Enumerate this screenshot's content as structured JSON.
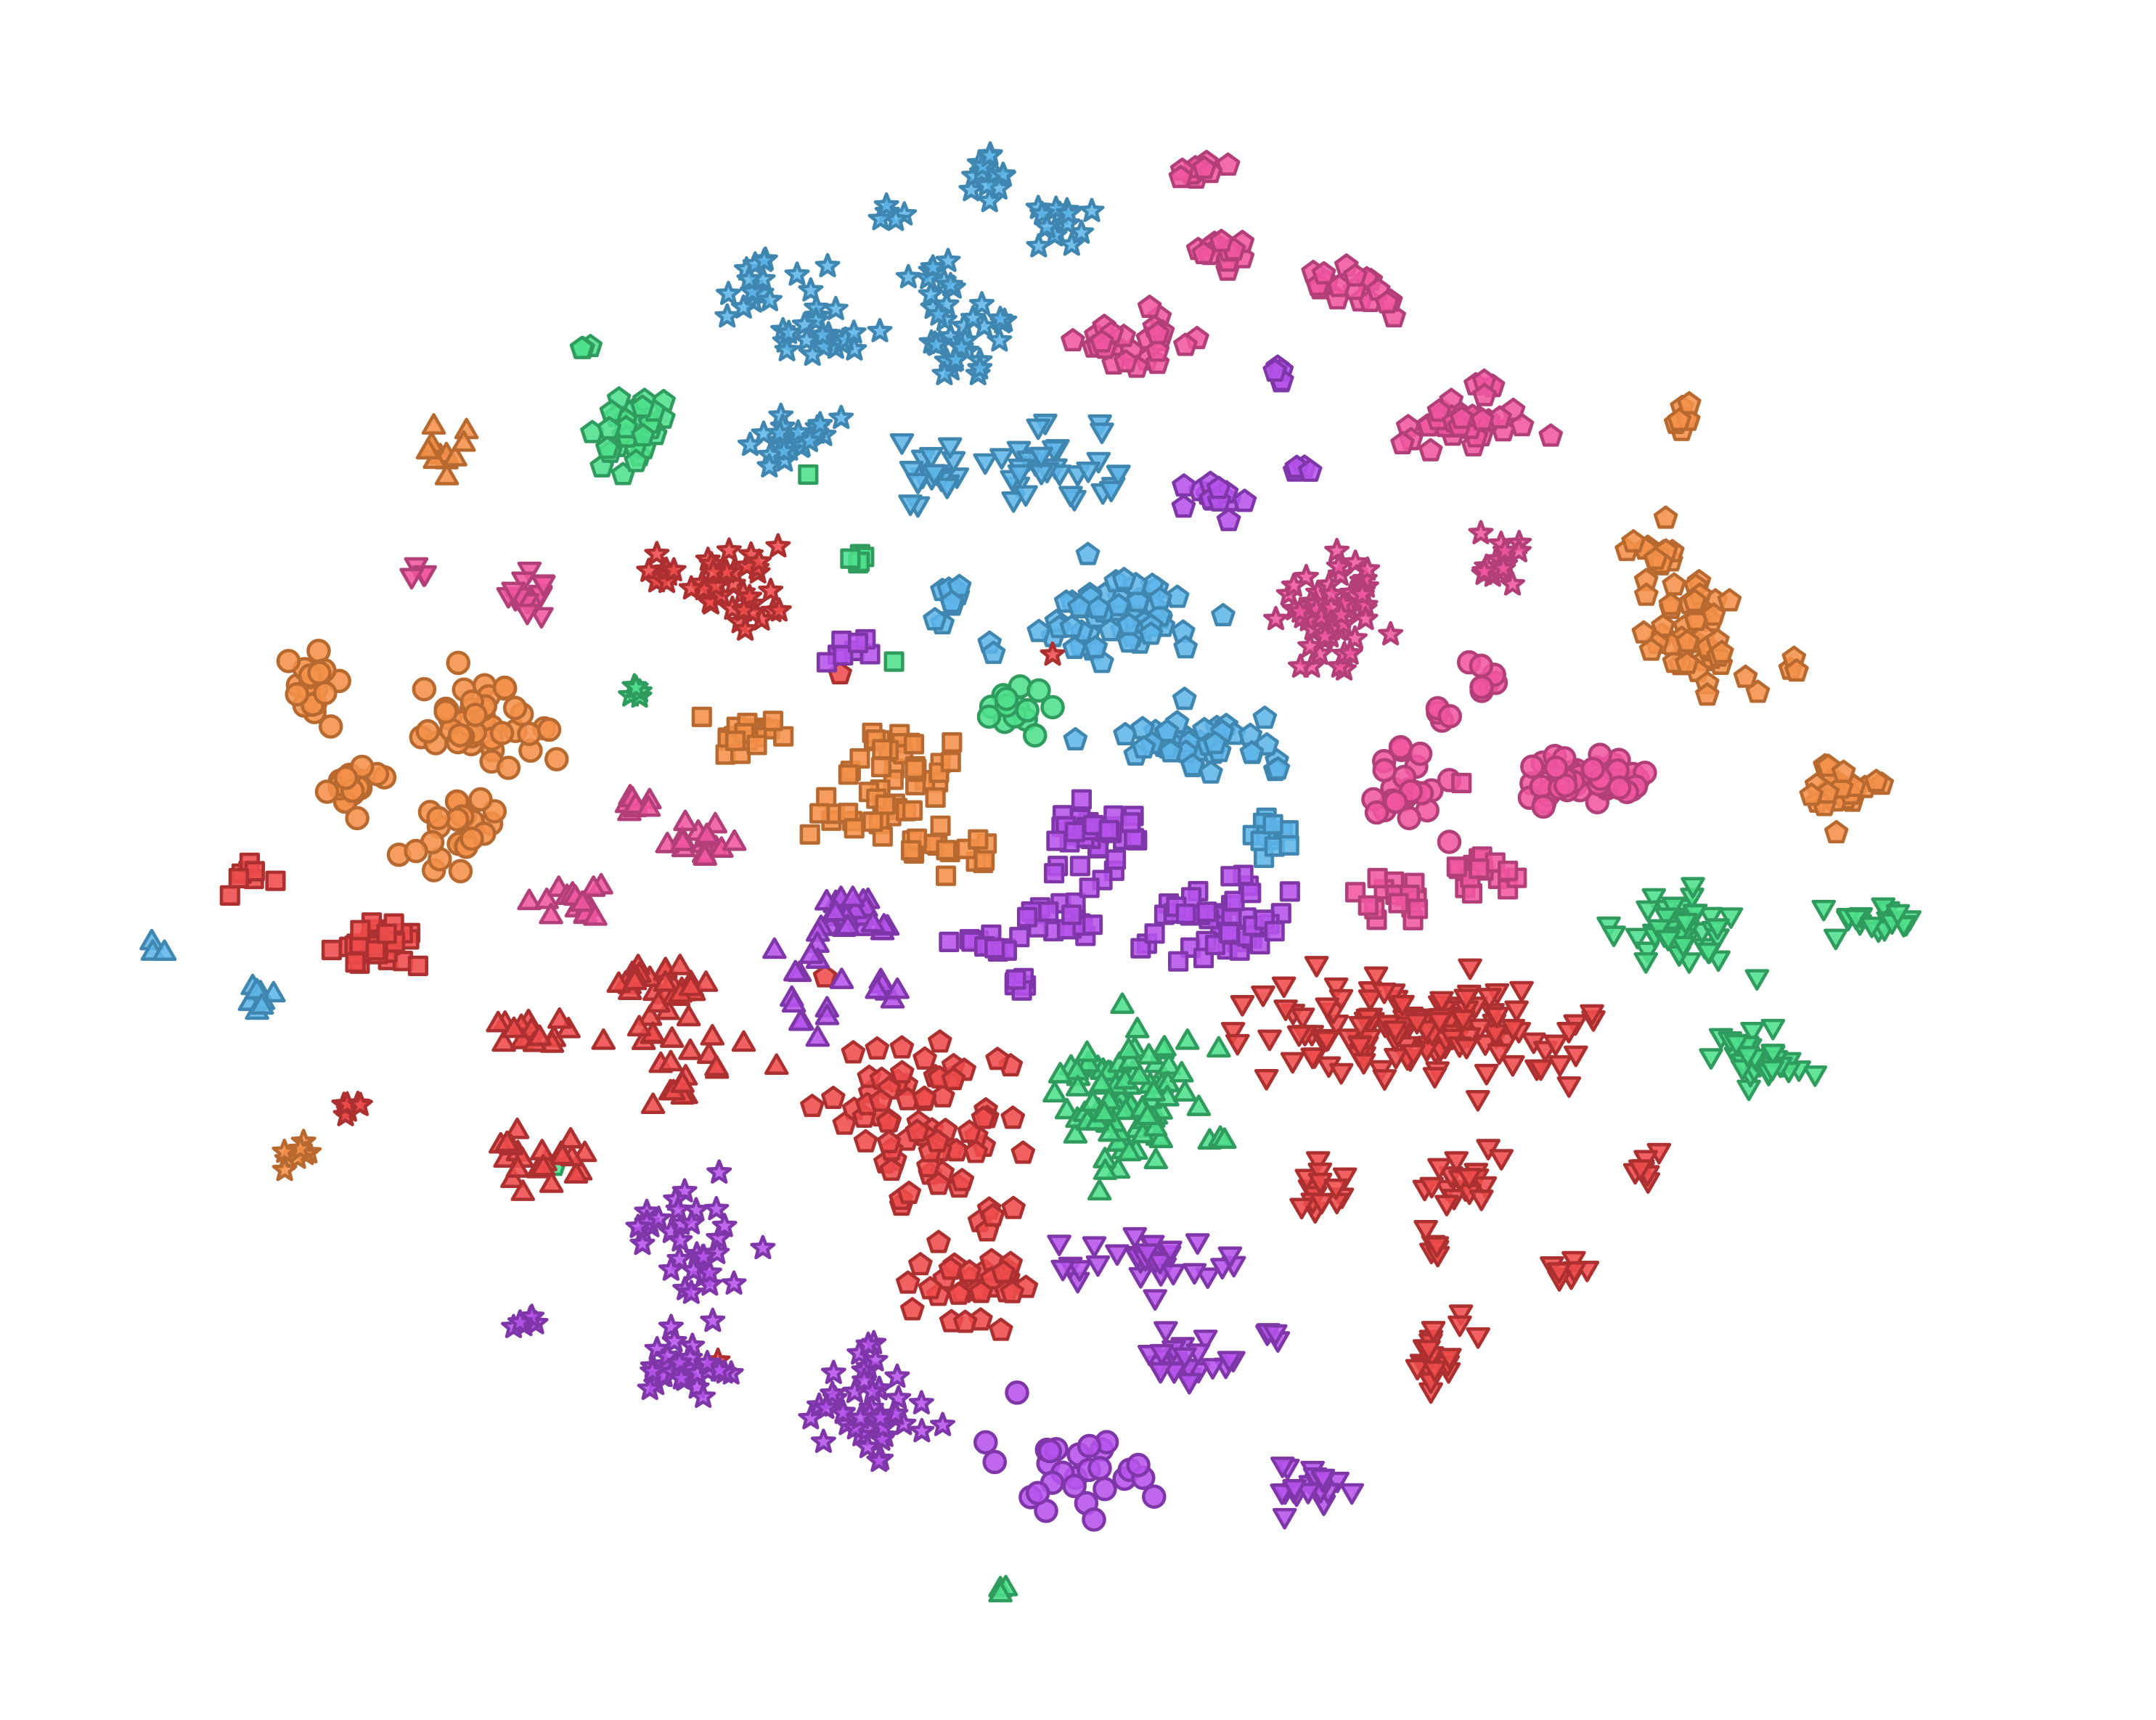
{
  "chart_data": {
    "type": "scatter",
    "title": "",
    "xlabel": "",
    "ylabel": "",
    "grid": false,
    "legend": "none",
    "axes_visible": false,
    "xlim": [
      0,
      1560
    ],
    "ylim": [
      0,
      1245
    ],
    "y_direction": "down",
    "palette": {
      "blue": {
        "fill": "#5fb6e8",
        "stroke": "#3f86b0"
      },
      "pink": {
        "fill": "#f0569f",
        "stroke": "#b23f78"
      },
      "orange": {
        "fill": "#f4914a",
        "stroke": "#b8692f"
      },
      "green": {
        "fill": "#4fe08c",
        "stroke": "#2f9c5e"
      },
      "red": {
        "fill": "#ef4b4b",
        "stroke": "#ad3030"
      },
      "purple": {
        "fill": "#b653ec",
        "stroke": "#7f36a8"
      }
    },
    "clusters": [
      {
        "color": "blue",
        "shape": "star",
        "cx": 716,
        "cy": 124,
        "sx": 9,
        "sy": 8,
        "n": 14
      },
      {
        "color": "blue",
        "shape": "star",
        "cx": 768,
        "cy": 160,
        "sx": 10,
        "sy": 9,
        "n": 14
      },
      {
        "color": "blue",
        "shape": "star",
        "cx": 646,
        "cy": 158,
        "sx": 10,
        "sy": 10,
        "n": 5
      },
      {
        "color": "blue",
        "shape": "star",
        "cx": 675,
        "cy": 196,
        "sx": 8,
        "sy": 10,
        "n": 10
      },
      {
        "color": "blue",
        "shape": "star",
        "cx": 548,
        "cy": 208,
        "sx": 12,
        "sy": 12,
        "n": 14
      },
      {
        "color": "blue",
        "shape": "star",
        "cx": 584,
        "cy": 202,
        "sx": 6,
        "sy": 4,
        "n": 3
      },
      {
        "color": "blue",
        "shape": "star",
        "cx": 595,
        "cy": 245,
        "sx": 15,
        "sy": 14,
        "n": 22
      },
      {
        "color": "blue",
        "shape": "star",
        "cx": 700,
        "cy": 245,
        "sx": 18,
        "sy": 15,
        "n": 28
      },
      {
        "color": "blue",
        "shape": "star",
        "cx": 580,
        "cy": 320,
        "sx": 14,
        "sy": 9,
        "n": 22
      },
      {
        "color": "blue",
        "shape": "tri_down",
        "cx": 673,
        "cy": 342,
        "sx": 14,
        "sy": 14,
        "n": 18
      },
      {
        "color": "blue",
        "shape": "tri_down",
        "cx": 758,
        "cy": 338,
        "sx": 16,
        "sy": 17,
        "n": 25
      },
      {
        "color": "blue",
        "shape": "tri_down",
        "cx": 800,
        "cy": 345,
        "sx": 8,
        "sy": 10,
        "n": 7
      },
      {
        "color": "blue",
        "shape": "pentagon",
        "cx": 690,
        "cy": 438,
        "sx": 9,
        "sy": 12,
        "n": 10
      },
      {
        "color": "blue",
        "shape": "pentagon",
        "cx": 718,
        "cy": 470,
        "sx": 5,
        "sy": 5,
        "n": 2
      },
      {
        "color": "blue",
        "shape": "pentagon",
        "cx": 808,
        "cy": 450,
        "sx": 26,
        "sy": 17,
        "n": 55
      },
      {
        "color": "blue",
        "shape": "pentagon",
        "cx": 864,
        "cy": 537,
        "sx": 28,
        "sy": 10,
        "n": 45
      },
      {
        "color": "blue",
        "shape": "square",
        "cx": 920,
        "cy": 602,
        "sx": 13,
        "sy": 7,
        "n": 14
      },
      {
        "color": "blue",
        "shape": "tri_up",
        "cx": 187,
        "cy": 722,
        "sx": 9,
        "sy": 6,
        "n": 8
      },
      {
        "color": "blue",
        "shape": "tri_up",
        "cx": 112,
        "cy": 688,
        "sx": 2,
        "sy": 2,
        "n": 3
      },
      {
        "color": "pink",
        "shape": "pentagon",
        "cx": 872,
        "cy": 124,
        "sx": 9,
        "sy": 5,
        "n": 10
      },
      {
        "color": "pink",
        "shape": "pentagon",
        "cx": 876,
        "cy": 178,
        "sx": 12,
        "sy": 6,
        "n": 12
      },
      {
        "color": "pink",
        "shape": "pentagon",
        "cx": 988,
        "cy": 208,
        "sx": 18,
        "sy": 8,
        "n": 18
      },
      {
        "color": "pink",
        "shape": "pentagon",
        "cx": 822,
        "cy": 248,
        "sx": 20,
        "sy": 10,
        "n": 28
      },
      {
        "color": "pink",
        "shape": "pentagon",
        "cx": 1058,
        "cy": 310,
        "sx": 26,
        "sy": 9,
        "n": 38
      },
      {
        "color": "pink",
        "shape": "pentagon",
        "cx": 1078,
        "cy": 278,
        "sx": 8,
        "sy": 3,
        "n": 5
      },
      {
        "color": "pink",
        "shape": "star",
        "cx": 962,
        "cy": 445,
        "sx": 20,
        "sy": 20,
        "n": 55
      },
      {
        "color": "pink",
        "shape": "star",
        "cx": 1080,
        "cy": 410,
        "sx": 10,
        "sy": 12,
        "n": 16
      },
      {
        "color": "pink",
        "shape": "circle",
        "cx": 1075,
        "cy": 492,
        "sx": 5,
        "sy": 6,
        "n": 7
      },
      {
        "color": "pink",
        "shape": "circle",
        "cx": 1040,
        "cy": 518,
        "sx": 4,
        "sy": 4,
        "n": 4
      },
      {
        "color": "pink",
        "shape": "circle",
        "cx": 1012,
        "cy": 568,
        "sx": 14,
        "sy": 13,
        "n": 25
      },
      {
        "color": "pink",
        "shape": "circle",
        "cx": 1152,
        "cy": 565,
        "sx": 22,
        "sy": 12,
        "n": 50
      },
      {
        "color": "pink",
        "shape": "circle",
        "cx": 1048,
        "cy": 608,
        "sx": 2,
        "sy": 2,
        "n": 1
      },
      {
        "color": "pink",
        "shape": "square",
        "cx": 1057,
        "cy": 570,
        "sx": 2,
        "sy": 2,
        "n": 1
      },
      {
        "color": "pink",
        "shape": "square",
        "cx": 1072,
        "cy": 633,
        "sx": 12,
        "sy": 9,
        "n": 16
      },
      {
        "color": "pink",
        "shape": "square",
        "cx": 998,
        "cy": 648,
        "sx": 16,
        "sy": 7,
        "n": 16
      },
      {
        "color": "pink",
        "shape": "tri_down",
        "cx": 376,
        "cy": 428,
        "sx": 14,
        "sy": 7,
        "n": 16
      },
      {
        "color": "pink",
        "shape": "tri_down",
        "cx": 304,
        "cy": 412,
        "sx": 5,
        "sy": 3,
        "n": 4
      },
      {
        "color": "pink",
        "shape": "tri_up",
        "cx": 463,
        "cy": 582,
        "sx": 7,
        "sy": 7,
        "n": 8
      },
      {
        "color": "pink",
        "shape": "tri_up",
        "cx": 506,
        "cy": 612,
        "sx": 15,
        "sy": 7,
        "n": 15
      },
      {
        "color": "pink",
        "shape": "tri_up",
        "cx": 420,
        "cy": 652,
        "sx": 22,
        "sy": 6,
        "n": 16
      },
      {
        "color": "orange",
        "shape": "tri_up",
        "cx": 322,
        "cy": 330,
        "sx": 8,
        "sy": 9,
        "n": 12
      },
      {
        "color": "orange",
        "shape": "circle",
        "cx": 228,
        "cy": 494,
        "sx": 8,
        "sy": 13,
        "n": 18
      },
      {
        "color": "orange",
        "shape": "circle",
        "cx": 350,
        "cy": 525,
        "sx": 24,
        "sy": 16,
        "n": 42
      },
      {
        "color": "orange",
        "shape": "circle",
        "cx": 255,
        "cy": 572,
        "sx": 11,
        "sy": 9,
        "n": 20
      },
      {
        "color": "orange",
        "shape": "circle",
        "cx": 330,
        "cy": 602,
        "sx": 15,
        "sy": 15,
        "n": 24
      },
      {
        "color": "orange",
        "shape": "square",
        "cx": 543,
        "cy": 532,
        "sx": 15,
        "sy": 7,
        "n": 20
      },
      {
        "color": "orange",
        "shape": "square",
        "cx": 650,
        "cy": 555,
        "sx": 22,
        "sy": 14,
        "n": 30
      },
      {
        "color": "orange",
        "shape": "square",
        "cx": 630,
        "cy": 590,
        "sx": 24,
        "sy": 9,
        "n": 22
      },
      {
        "color": "orange",
        "shape": "square",
        "cx": 692,
        "cy": 612,
        "sx": 14,
        "sy": 9,
        "n": 16
      },
      {
        "color": "orange",
        "shape": "pentagon",
        "cx": 1214,
        "cy": 302,
        "sx": 5,
        "sy": 6,
        "n": 7
      },
      {
        "color": "orange",
        "shape": "pentagon",
        "cx": 1195,
        "cy": 400,
        "sx": 10,
        "sy": 12,
        "n": 16
      },
      {
        "color": "orange",
        "shape": "pentagon",
        "cx": 1232,
        "cy": 458,
        "sx": 18,
        "sy": 20,
        "n": 45
      },
      {
        "color": "orange",
        "shape": "pentagon",
        "cx": 1297,
        "cy": 482,
        "sx": 3,
        "sy": 3,
        "n": 3
      },
      {
        "color": "orange",
        "shape": "pentagon",
        "cx": 1332,
        "cy": 570,
        "sx": 13,
        "sy": 10,
        "n": 22
      },
      {
        "color": "orange",
        "shape": "star",
        "cx": 215,
        "cy": 836,
        "sx": 6,
        "sy": 5,
        "n": 8
      },
      {
        "color": "green",
        "shape": "pentagon",
        "cx": 423,
        "cy": 252,
        "sx": 2,
        "sy": 2,
        "n": 3
      },
      {
        "color": "green",
        "shape": "pentagon",
        "cx": 455,
        "cy": 312,
        "sx": 15,
        "sy": 12,
        "n": 30
      },
      {
        "color": "green",
        "shape": "square",
        "cx": 585,
        "cy": 343,
        "sx": 1,
        "sy": 1,
        "n": 1
      },
      {
        "color": "green",
        "shape": "square",
        "cx": 620,
        "cy": 404,
        "sx": 5,
        "sy": 5,
        "n": 6
      },
      {
        "color": "green",
        "shape": "square",
        "cx": 645,
        "cy": 478,
        "sx": 1,
        "sy": 1,
        "n": 1
      },
      {
        "color": "green",
        "shape": "circle",
        "cx": 735,
        "cy": 515,
        "sx": 12,
        "sy": 9,
        "n": 14
      },
      {
        "color": "green",
        "shape": "star",
        "cx": 460,
        "cy": 502,
        "sx": 4,
        "sy": 4,
        "n": 5
      },
      {
        "color": "green",
        "shape": "tri_up",
        "cx": 818,
        "cy": 797,
        "sx": 22,
        "sy": 25,
        "n": 95
      },
      {
        "color": "green",
        "shape": "tri_up",
        "cx": 882,
        "cy": 828,
        "sx": 5,
        "sy": 5,
        "n": 3
      },
      {
        "color": "green",
        "shape": "tri_up",
        "cx": 727,
        "cy": 1150,
        "sx": 2,
        "sy": 2,
        "n": 3
      },
      {
        "color": "green",
        "shape": "tri_down",
        "cx": 1218,
        "cy": 673,
        "sx": 18,
        "sy": 15,
        "n": 48
      },
      {
        "color": "green",
        "shape": "tri_down",
        "cx": 1350,
        "cy": 668,
        "sx": 18,
        "sy": 7,
        "n": 18
      },
      {
        "color": "green",
        "shape": "tri_down",
        "cx": 1270,
        "cy": 765,
        "sx": 17,
        "sy": 9,
        "n": 32
      },
      {
        "color": "green",
        "shape": "pentagon",
        "cx": 400,
        "cy": 842,
        "sx": 1,
        "sy": 1,
        "n": 1
      },
      {
        "color": "red",
        "shape": "star",
        "cx": 480,
        "cy": 418,
        "sx": 7,
        "sy": 7,
        "n": 8
      },
      {
        "color": "red",
        "shape": "star",
        "cx": 530,
        "cy": 425,
        "sx": 13,
        "sy": 20,
        "n": 35
      },
      {
        "color": "red",
        "shape": "star",
        "cx": 566,
        "cy": 396,
        "sx": 2,
        "sy": 2,
        "n": 1
      },
      {
        "color": "red",
        "shape": "star",
        "cx": 764,
        "cy": 472,
        "sx": 2,
        "sy": 2,
        "n": 1
      },
      {
        "color": "red",
        "shape": "star",
        "cx": 252,
        "cy": 802,
        "sx": 6,
        "sy": 3,
        "n": 6
      },
      {
        "color": "red",
        "shape": "star",
        "cx": 516,
        "cy": 985,
        "sx": 2,
        "sy": 2,
        "n": 1
      },
      {
        "color": "red",
        "shape": "square",
        "cx": 178,
        "cy": 630,
        "sx": 7,
        "sy": 7,
        "n": 8
      },
      {
        "color": "red",
        "shape": "square",
        "cx": 278,
        "cy": 683,
        "sx": 18,
        "sy": 8,
        "n": 28
      },
      {
        "color": "red",
        "shape": "pentagon",
        "cx": 670,
        "cy": 810,
        "sx": 28,
        "sy": 35,
        "n": 70
      },
      {
        "color": "red",
        "shape": "pentagon",
        "cx": 700,
        "cy": 930,
        "sx": 25,
        "sy": 12,
        "n": 30
      },
      {
        "color": "red",
        "shape": "pentagon",
        "cx": 712,
        "cy": 808,
        "sx": 2,
        "sy": 2,
        "n": 1
      },
      {
        "color": "red",
        "shape": "pentagon",
        "cx": 720,
        "cy": 882,
        "sx": 7,
        "sy": 5,
        "n": 5
      },
      {
        "color": "red",
        "shape": "pentagon",
        "cx": 608,
        "cy": 486,
        "sx": 2,
        "sy": 2,
        "n": 1
      },
      {
        "color": "red",
        "shape": "tri_up",
        "cx": 478,
        "cy": 715,
        "sx": 16,
        "sy": 10,
        "n": 30
      },
      {
        "color": "red",
        "shape": "tri_up",
        "cx": 390,
        "cy": 748,
        "sx": 17,
        "sy": 6,
        "n": 16
      },
      {
        "color": "red",
        "shape": "tri_up",
        "cx": 500,
        "cy": 772,
        "sx": 24,
        "sy": 15,
        "n": 22
      },
      {
        "color": "red",
        "shape": "tri_up",
        "cx": 390,
        "cy": 838,
        "sx": 17,
        "sy": 10,
        "n": 22
      },
      {
        "color": "red",
        "shape": "tri_down",
        "cx": 1028,
        "cy": 745,
        "sx": 58,
        "sy": 18,
        "n": 140
      },
      {
        "color": "red",
        "shape": "tri_down",
        "cx": 958,
        "cy": 862,
        "sx": 9,
        "sy": 9,
        "n": 15
      },
      {
        "color": "red",
        "shape": "tri_down",
        "cx": 1058,
        "cy": 852,
        "sx": 15,
        "sy": 12,
        "n": 18
      },
      {
        "color": "red",
        "shape": "tri_down",
        "cx": 1032,
        "cy": 905,
        "sx": 5,
        "sy": 12,
        "n": 6
      },
      {
        "color": "red",
        "shape": "tri_down",
        "cx": 1190,
        "cy": 845,
        "sx": 6,
        "sy": 5,
        "n": 8
      },
      {
        "color": "red",
        "shape": "tri_down",
        "cx": 1138,
        "cy": 922,
        "sx": 7,
        "sy": 6,
        "n": 8
      },
      {
        "color": "red",
        "shape": "tri_down",
        "cx": 1042,
        "cy": 980,
        "sx": 14,
        "sy": 12,
        "n": 20
      },
      {
        "color": "purple",
        "shape": "tri_up",
        "cx": 610,
        "cy": 662,
        "sx": 20,
        "sy": 10,
        "n": 30
      },
      {
        "color": "purple",
        "shape": "tri_up",
        "cx": 575,
        "cy": 700,
        "sx": 16,
        "sy": 10,
        "n": 8
      },
      {
        "color": "purple",
        "shape": "tri_up",
        "cx": 640,
        "cy": 715,
        "sx": 6,
        "sy": 6,
        "n": 6
      },
      {
        "color": "purple",
        "shape": "tri_up",
        "cx": 590,
        "cy": 738,
        "sx": 6,
        "sy": 6,
        "n": 6
      },
      {
        "color": "purple",
        "shape": "square",
        "cx": 793,
        "cy": 605,
        "sx": 17,
        "sy": 12,
        "n": 40
      },
      {
        "color": "purple",
        "shape": "square",
        "cx": 710,
        "cy": 682,
        "sx": 12,
        "sy": 6,
        "n": 12
      },
      {
        "color": "purple",
        "shape": "square",
        "cx": 770,
        "cy": 665,
        "sx": 15,
        "sy": 10,
        "n": 18
      },
      {
        "color": "purple",
        "shape": "square",
        "cx": 738,
        "cy": 708,
        "sx": 6,
        "sy": 5,
        "n": 6
      },
      {
        "color": "purple",
        "shape": "square",
        "cx": 828,
        "cy": 688,
        "sx": 3,
        "sy": 3,
        "n": 2
      },
      {
        "color": "purple",
        "shape": "square",
        "cx": 885,
        "cy": 670,
        "sx": 22,
        "sy": 15,
        "n": 45
      },
      {
        "color": "purple",
        "shape": "square",
        "cx": 615,
        "cy": 472,
        "sx": 10,
        "sy": 6,
        "n": 8
      },
      {
        "color": "purple",
        "shape": "pentagon",
        "cx": 927,
        "cy": 274,
        "sx": 3,
        "sy": 7,
        "n": 5
      },
      {
        "color": "purple",
        "shape": "pentagon",
        "cx": 880,
        "cy": 360,
        "sx": 12,
        "sy": 8,
        "n": 14
      },
      {
        "color": "purple",
        "shape": "pentagon",
        "cx": 940,
        "cy": 338,
        "sx": 4,
        "sy": 3,
        "n": 4
      },
      {
        "color": "purple",
        "shape": "star",
        "cx": 500,
        "cy": 905,
        "sx": 18,
        "sy": 25,
        "n": 35
      },
      {
        "color": "purple",
        "shape": "star",
        "cx": 378,
        "cy": 958,
        "sx": 6,
        "sy": 3,
        "n": 6
      },
      {
        "color": "purple",
        "shape": "star",
        "cx": 495,
        "cy": 992,
        "sx": 15,
        "sy": 12,
        "n": 30
      },
      {
        "color": "purple",
        "shape": "star",
        "cx": 628,
        "cy": 1022,
        "sx": 18,
        "sy": 18,
        "n": 45
      },
      {
        "color": "purple",
        "shape": "tri_down",
        "cx": 832,
        "cy": 912,
        "sx": 30,
        "sy": 9,
        "n": 35
      },
      {
        "color": "purple",
        "shape": "tri_down",
        "cx": 920,
        "cy": 957,
        "sx": 5,
        "sy": 5,
        "n": 4
      },
      {
        "color": "purple",
        "shape": "tri_down",
        "cx": 860,
        "cy": 984,
        "sx": 15,
        "sy": 9,
        "n": 22
      },
      {
        "color": "purple",
        "shape": "tri_down",
        "cx": 948,
        "cy": 1075,
        "sx": 12,
        "sy": 9,
        "n": 20
      },
      {
        "color": "purple",
        "shape": "circle",
        "cx": 775,
        "cy": 1062,
        "sx": 30,
        "sy": 22,
        "n": 28
      }
    ]
  }
}
